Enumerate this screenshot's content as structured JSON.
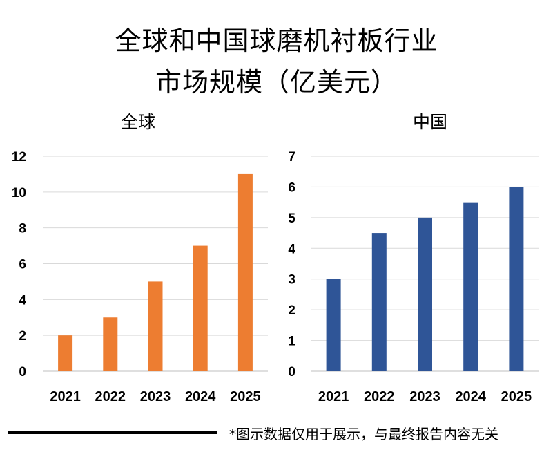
{
  "title_line1": "全球和中国球磨机衬板行业",
  "title_line2": "市场规模（亿美元）",
  "footer_note": "*图示数据仅用于展示，与最终报告内容无关",
  "chart_data": [
    {
      "type": "bar",
      "title": "全球",
      "categories": [
        "2021",
        "2022",
        "2023",
        "2024",
        "2025"
      ],
      "values": [
        2,
        3,
        5,
        7,
        11
      ],
      "ylim": [
        0,
        12
      ],
      "yticks": [
        0,
        2,
        4,
        6,
        8,
        10,
        12
      ],
      "color": "#ED7D31",
      "grid": true
    },
    {
      "type": "bar",
      "title": "中国",
      "categories": [
        "2021",
        "2022",
        "2023",
        "2024",
        "2025"
      ],
      "values": [
        3,
        4.5,
        5,
        5.5,
        6
      ],
      "ylim": [
        0,
        7
      ],
      "yticks": [
        0,
        1,
        2,
        3,
        4,
        5,
        6,
        7
      ],
      "color": "#2F5597",
      "grid": true
    }
  ]
}
